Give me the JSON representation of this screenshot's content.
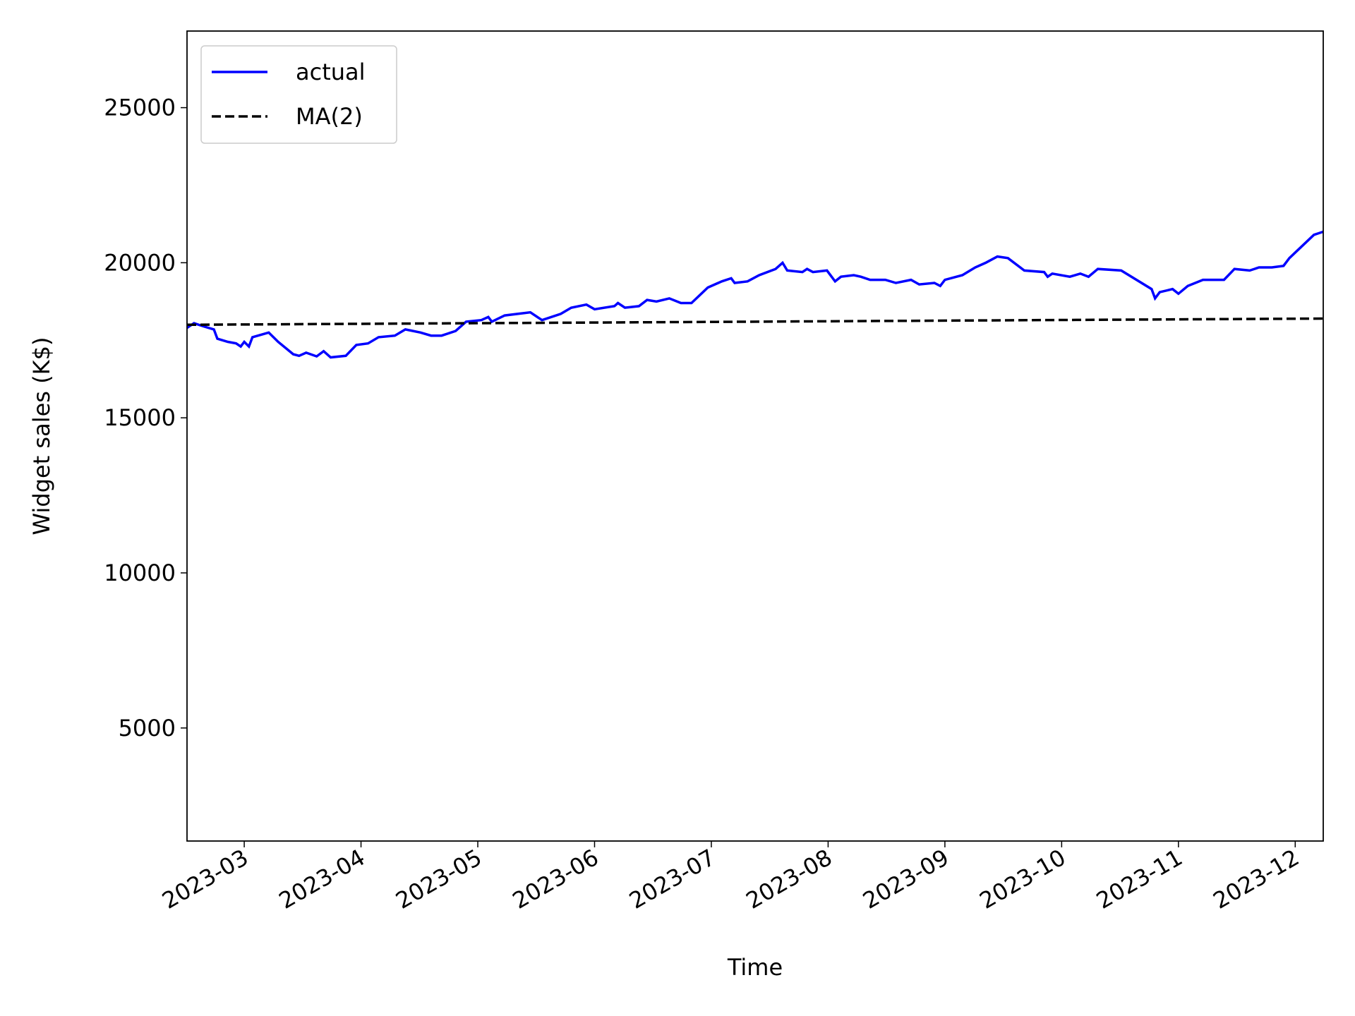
{
  "chart_data": {
    "type": "line",
    "xlabel": "Time",
    "ylabel": "Widget sales (K$)",
    "xlim": [
      2.51,
      12.24
    ],
    "xticks": [
      {
        "value": 3,
        "label": "2023-03"
      },
      {
        "value": 4,
        "label": "2023-04"
      },
      {
        "value": 5,
        "label": "2023-05"
      },
      {
        "value": 6,
        "label": "2023-06"
      },
      {
        "value": 7,
        "label": "2023-07"
      },
      {
        "value": 8,
        "label": "2023-08"
      },
      {
        "value": 9,
        "label": "2023-09"
      },
      {
        "value": 10,
        "label": "2023-10"
      },
      {
        "value": 11,
        "label": "2023-11"
      },
      {
        "value": 12,
        "label": "2023-12"
      }
    ],
    "ylim": [
      1355,
      27470
    ],
    "yticks": [
      5000,
      10000,
      15000,
      20000,
      25000
    ],
    "legend": "upper left",
    "series": [
      {
        "name": "actual",
        "color": "#0000ff",
        "style": "solid",
        "x": [
          2.51,
          2.57,
          2.65,
          2.74,
          2.77,
          2.86,
          2.93,
          2.97,
          3.0,
          3.04,
          3.07,
          3.21,
          3.29,
          3.42,
          3.47,
          3.53,
          3.62,
          3.68,
          3.74,
          3.87,
          3.96,
          4.06,
          4.15,
          4.29,
          4.38,
          4.51,
          4.6,
          4.69,
          4.81,
          4.9,
          5.03,
          5.09,
          5.12,
          5.23,
          5.34,
          5.45,
          5.55,
          5.71,
          5.8,
          5.93,
          6.0,
          6.17,
          6.2,
          6.26,
          6.38,
          6.45,
          6.53,
          6.64,
          6.74,
          6.83,
          6.97,
          7.09,
          7.17,
          7.2,
          7.31,
          7.41,
          7.55,
          7.61,
          7.65,
          7.78,
          7.82,
          7.87,
          7.99,
          8.06,
          8.11,
          8.22,
          8.28,
          8.36,
          8.49,
          8.58,
          8.71,
          8.78,
          8.91,
          8.96,
          9.0,
          9.15,
          9.26,
          9.35,
          9.45,
          9.54,
          9.68,
          9.85,
          9.88,
          9.92,
          10.07,
          10.16,
          10.23,
          10.31,
          10.51,
          10.77,
          10.8,
          10.84,
          10.95,
          11.0,
          11.08,
          11.21,
          11.32,
          11.39,
          11.48,
          11.61,
          11.69,
          11.8,
          11.9,
          11.95,
          12.16,
          12.2,
          12.24
        ],
        "values": [
          17900,
          18050,
          17950,
          17850,
          17550,
          17450,
          17400,
          17300,
          17450,
          17300,
          17600,
          17750,
          17450,
          17050,
          17000,
          17100,
          16980,
          17150,
          16950,
          17000,
          17350,
          17400,
          17600,
          17650,
          17850,
          17750,
          17650,
          17650,
          17800,
          18100,
          18150,
          18250,
          18100,
          18300,
          18350,
          18400,
          18150,
          18350,
          18550,
          18650,
          18500,
          18600,
          18700,
          18550,
          18600,
          18800,
          18750,
          18850,
          18700,
          18700,
          19200,
          19400,
          19500,
          19350,
          19400,
          19600,
          19800,
          20000,
          19750,
          19700,
          19800,
          19700,
          19750,
          19400,
          19550,
          19600,
          19550,
          19450,
          19450,
          19350,
          19450,
          19300,
          19350,
          19250,
          19450,
          19600,
          19850,
          20000,
          20200,
          20150,
          19750,
          19700,
          19550,
          19650,
          19550,
          19650,
          19550,
          19800,
          19750,
          19150,
          18850,
          19050,
          19150,
          19000,
          19250,
          19450,
          19450,
          19450,
          19800,
          19750,
          19850,
          19850,
          19900,
          20150,
          20900,
          20950,
          21000
        ]
      },
      {
        "name": "MA(2)",
        "color": "#000000",
        "style": "dashed",
        "x": [
          2.51,
          12.24
        ],
        "values": [
          18000,
          18200
        ]
      }
    ]
  }
}
